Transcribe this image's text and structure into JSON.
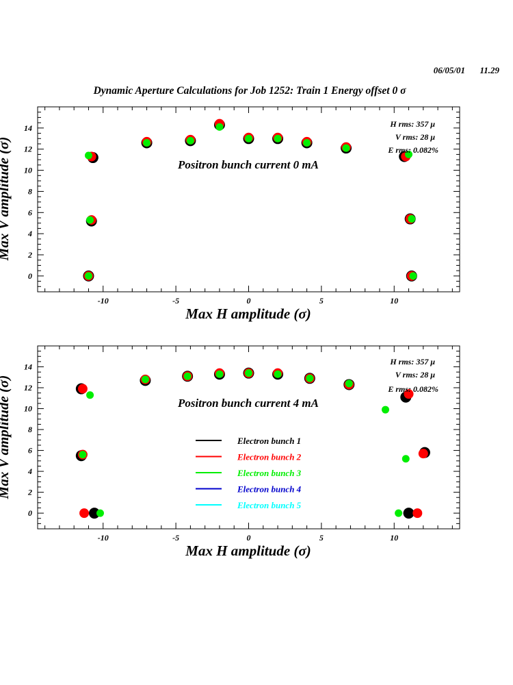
{
  "header": {
    "date": "06/05/01",
    "time": "11.29",
    "title": "Dynamic Aperture Calculations for Job 1252:  Train 1   Energy offset  0 σ"
  },
  "chart_data": [
    {
      "type": "scatter",
      "xlabel": "Max H amplitude (σ)",
      "ylabel": "Max V amplitude (σ)",
      "xlim": [
        -14.5,
        14.5
      ],
      "ylim": [
        -1.5,
        16
      ],
      "xticks": [
        -10,
        -5,
        0,
        5,
        10
      ],
      "yticks": [
        0,
        2,
        4,
        6,
        8,
        10,
        12,
        14
      ],
      "annotation": "Positron bunch current  0 mA",
      "stats": [
        "H rms: 357 μ",
        "V rms: 28 μ",
        "E rms: 0.082%"
      ],
      "series": [
        {
          "color": "#000000",
          "points": [
            [
              -10.7,
              11.2
            ],
            [
              -10.8,
              5.2
            ],
            [
              -11.0,
              0.0
            ],
            [
              -7.0,
              12.6
            ],
            [
              -4.0,
              12.8
            ],
            [
              -2.0,
              14.3
            ],
            [
              0.0,
              13.0
            ],
            [
              2.0,
              13.0
            ],
            [
              4.0,
              12.6
            ],
            [
              6.7,
              12.1
            ],
            [
              10.7,
              11.3
            ],
            [
              11.1,
              5.4
            ],
            [
              11.2,
              0.0
            ]
          ]
        },
        {
          "color": "#ff0000",
          "points": [
            [
              -10.8,
              11.3
            ],
            [
              -10.8,
              5.3
            ],
            [
              -11.0,
              0.0
            ],
            [
              -7.0,
              12.7
            ],
            [
              -4.0,
              12.9
            ],
            [
              -2.0,
              14.4
            ],
            [
              0.0,
              13.1
            ],
            [
              2.0,
              13.1
            ],
            [
              4.0,
              12.7
            ],
            [
              6.7,
              12.2
            ],
            [
              10.8,
              11.3
            ],
            [
              11.1,
              5.4
            ],
            [
              11.2,
              0.0
            ]
          ]
        },
        {
          "color": "#00ee00",
          "points": [
            [
              -11.0,
              11.4
            ],
            [
              -10.9,
              5.3
            ],
            [
              -11.0,
              0.0
            ],
            [
              -7.0,
              12.6
            ],
            [
              -4.0,
              12.8
            ],
            [
              -2.0,
              14.1
            ],
            [
              0.0,
              13.0
            ],
            [
              2.0,
              13.0
            ],
            [
              4.0,
              12.6
            ],
            [
              6.7,
              12.1
            ],
            [
              11.0,
              11.5
            ],
            [
              11.2,
              5.4
            ],
            [
              11.3,
              0.0
            ]
          ]
        }
      ]
    },
    {
      "type": "scatter",
      "xlabel": "Max H amplitude (σ)",
      "ylabel": "Max V amplitude (σ)",
      "xlim": [
        -14.5,
        14.5
      ],
      "ylim": [
        -1.5,
        16
      ],
      "xticks": [
        -10,
        -5,
        0,
        5,
        10
      ],
      "yticks": [
        0,
        2,
        4,
        6,
        8,
        10,
        12,
        14
      ],
      "annotation": "Positron bunch current  4 mA",
      "stats": [
        "H rms: 357 μ",
        "V rms: 28 μ",
        "E rms: 0.082%"
      ],
      "legend": [
        {
          "label": "Electron bunch 1",
          "color": "#000000"
        },
        {
          "label": "Electron bunch 2",
          "color": "#ff0000"
        },
        {
          "label": "Electron bunch 3",
          "color": "#00ee00"
        },
        {
          "label": "Electron bunch 4",
          "color": "#0000cc"
        },
        {
          "label": "Electron bunch 5",
          "color": "#00ffff"
        }
      ],
      "series": [
        {
          "color": "#000000",
          "points": [
            [
              -11.5,
              11.9
            ],
            [
              -11.5,
              5.5
            ],
            [
              -10.6,
              0.0
            ],
            [
              -7.1,
              12.7
            ],
            [
              -4.2,
              13.1
            ],
            [
              -2.0,
              13.3
            ],
            [
              0.0,
              13.4
            ],
            [
              2.0,
              13.3
            ],
            [
              4.2,
              12.9
            ],
            [
              6.9,
              12.3
            ],
            [
              10.8,
              11.1
            ],
            [
              12.1,
              5.8
            ],
            [
              11.0,
              0.0
            ]
          ]
        },
        {
          "color": "#ff0000",
          "points": [
            [
              -11.4,
              11.9
            ],
            [
              -11.4,
              5.6
            ],
            [
              -11.3,
              0.0
            ],
            [
              -7.1,
              12.8
            ],
            [
              -4.2,
              13.1
            ],
            [
              -2.0,
              13.4
            ],
            [
              0.0,
              13.4
            ],
            [
              2.0,
              13.4
            ],
            [
              4.2,
              12.9
            ],
            [
              6.9,
              12.3
            ],
            [
              11.0,
              11.4
            ],
            [
              12.0,
              5.7
            ],
            [
              11.6,
              0.0
            ]
          ]
        },
        {
          "color": "#00ee00",
          "points": [
            [
              -10.9,
              11.3
            ],
            [
              -11.4,
              5.6
            ],
            [
              -10.2,
              0.0
            ],
            [
              -7.1,
              12.8
            ],
            [
              -4.2,
              13.1
            ],
            [
              -2.0,
              13.3
            ],
            [
              0.0,
              13.4
            ],
            [
              2.0,
              13.3
            ],
            [
              4.2,
              12.9
            ],
            [
              6.9,
              12.4
            ],
            [
              9.4,
              9.9
            ],
            [
              10.8,
              5.2
            ],
            [
              10.3,
              0.0
            ]
          ]
        }
      ]
    }
  ]
}
